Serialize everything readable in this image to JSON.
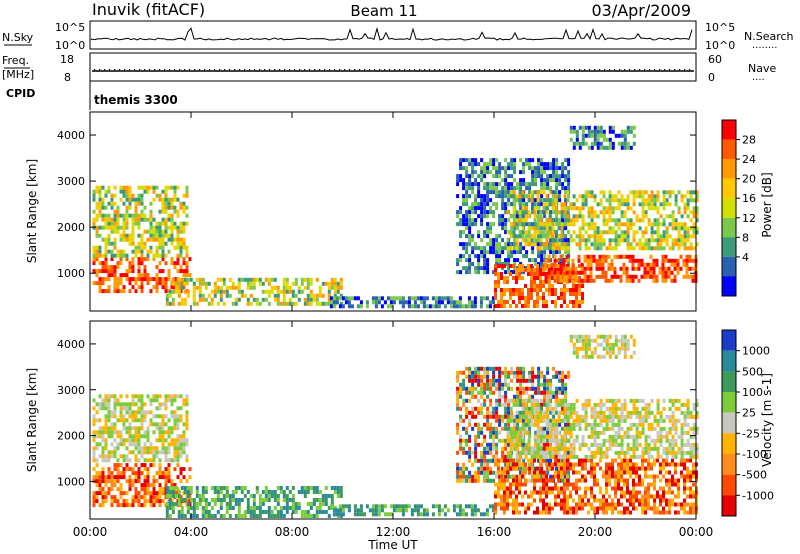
{
  "header": {
    "station": "Inuvik (fitACF)",
    "beam": "Beam 11",
    "date": "03/Apr/2009"
  },
  "nsky_panel": {
    "left_label": "N.Sky",
    "left_ticks": [
      "10^5",
      "10^0"
    ],
    "right_ticks": [
      "10^5",
      "10^0"
    ],
    "right_label": "N.Search",
    "right_legend": "........"
  },
  "freq_panel": {
    "left_label_line1": "Freq.",
    "left_label_line2": "[MHz]",
    "left_ticks": [
      "18",
      "8"
    ],
    "right_ticks": [
      "60",
      "0"
    ],
    "right_label": "Nave",
    "right_legend": "...."
  },
  "cpid_panel": {
    "label": "CPID",
    "mode": "themis 3300"
  },
  "x_axis": {
    "label": "Time UT",
    "ticks": [
      "00:00",
      "04:00",
      "08:00",
      "12:00",
      "16:00",
      "20:00",
      "00:00"
    ]
  },
  "chart_data": [
    {
      "type": "heatmap",
      "title": "",
      "xlabel": "",
      "ylabel": "Slant Range [km]",
      "xlim_hours": [
        0,
        24
      ],
      "ylim_km": [
        180,
        4500
      ],
      "y_ticks": [
        "4000",
        "3000",
        "2000",
        "1000"
      ],
      "colorbar_label": "Power [dB]",
      "colorbar_ticks": [
        "28",
        "24",
        "20",
        "16",
        "12",
        "8",
        "4"
      ],
      "colorbar_colors": [
        "#ff0000",
        "#ff5a00",
        "#ff9a00",
        "#ffc800",
        "#d2e000",
        "#7cc84c",
        "#3c9a78",
        "#2a60b0",
        "#0000ff"
      ],
      "regions": [
        {
          "t": [
            0.1,
            4.0
          ],
          "r": [
            650,
            1350
          ],
          "level": "strong"
        },
        {
          "t": [
            0.1,
            3.9
          ],
          "r": [
            1400,
            2900
          ],
          "level": "medium"
        },
        {
          "t": [
            3.0,
            10.0
          ],
          "r": [
            300,
            900
          ],
          "level": "medium"
        },
        {
          "t": [
            9.5,
            16.0
          ],
          "r": [
            250,
            500
          ],
          "level": "weak"
        },
        {
          "t": [
            14.5,
            19.0
          ],
          "r": [
            1000,
            3500
          ],
          "level": "weak"
        },
        {
          "t": [
            16.0,
            19.5
          ],
          "r": [
            300,
            1200
          ],
          "level": "strong"
        },
        {
          "t": [
            18.0,
            24.0
          ],
          "r": [
            800,
            1400
          ],
          "level": "strong"
        },
        {
          "t": [
            16.5,
            24.0
          ],
          "r": [
            1500,
            2800
          ],
          "level": "medium"
        },
        {
          "t": [
            19.0,
            21.5
          ],
          "r": [
            3700,
            4200
          ],
          "level": "weak"
        }
      ]
    },
    {
      "type": "heatmap",
      "title": "",
      "xlabel": "Time UT",
      "ylabel": "Slant Range [km]",
      "xlim_hours": [
        0,
        24
      ],
      "ylim_km": [
        180,
        4500
      ],
      "y_ticks": [
        "4000",
        "3000",
        "2000",
        "1000"
      ],
      "colorbar_label": "Velocity [m s-1]",
      "colorbar_ticks": [
        "1000",
        "500",
        "100",
        "25",
        "-25",
        "-100",
        "-500",
        "-1000"
      ],
      "colorbar_colors": [
        "#1a3cc8",
        "#2a8a9a",
        "#3c9a5a",
        "#7ccc3c",
        "#c8c8c0",
        "#ffb400",
        "#ff8c1e",
        "#ff4a00",
        "#e60000"
      ],
      "regions": [
        {
          "t": [
            0.1,
            4.0
          ],
          "r": [
            500,
            1400
          ],
          "level": "neg"
        },
        {
          "t": [
            0.1,
            3.9
          ],
          "r": [
            1500,
            2900
          ],
          "level": "zero"
        },
        {
          "t": [
            3.0,
            10.0
          ],
          "r": [
            250,
            900
          ],
          "level": "pos"
        },
        {
          "t": [
            9.5,
            16.0
          ],
          "r": [
            250,
            500
          ],
          "level": "pos"
        },
        {
          "t": [
            14.5,
            19.0
          ],
          "r": [
            1000,
            3500
          ],
          "level": "mixed"
        },
        {
          "t": [
            16.0,
            24.0
          ],
          "r": [
            300,
            1500
          ],
          "level": "neg"
        },
        {
          "t": [
            16.5,
            24.0
          ],
          "r": [
            1500,
            2800
          ],
          "level": "zero"
        },
        {
          "t": [
            19.0,
            21.5
          ],
          "r": [
            3700,
            4200
          ],
          "level": "zero"
        }
      ]
    }
  ]
}
